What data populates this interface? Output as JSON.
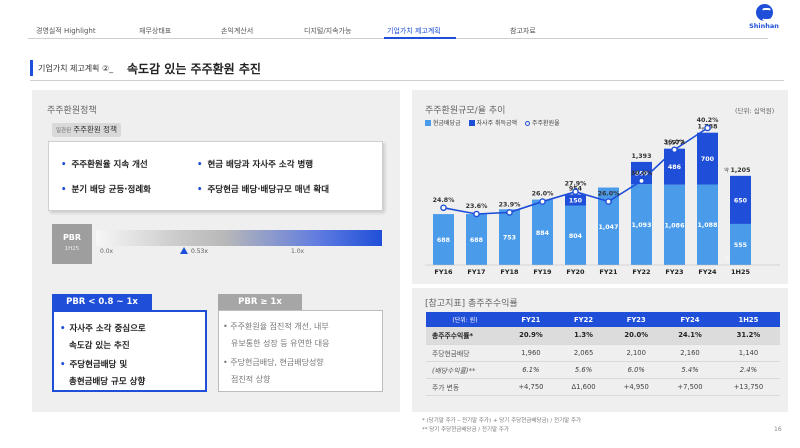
{
  "nav": {
    "items": [
      "경영실적 Highlight",
      "재무상태표",
      "손익계산서",
      "디지털/지속가능",
      "기업가치 제고계획",
      "참고자료"
    ],
    "active_index": 4
  },
  "logo": {
    "text": "Shinhan"
  },
  "page": {
    "subtitle": "기업가치 제고계획 ②_",
    "title": "속도감 있는 주주환원 추진",
    "number": "16"
  },
  "left_panel": {
    "title": "주주환원정책",
    "chip_small": "일관된",
    "chip_label": "주주환원 정책",
    "policies": [
      "주주환원율 지속 개선",
      "현금 배당과 자사주 소각 병행",
      "분기 배당 균등·정례화",
      "주당현금 배당·배당규모 매년 확대"
    ],
    "pbr": {
      "label": "PBR",
      "sub": "1H25",
      "ticks": [
        "0.0x",
        "1.0x"
      ],
      "current": "0.53x"
    },
    "scenario_a": {
      "header": "PBR < 0.8 ~ 1x",
      "lines": [
        "자사주 소각 중심으로",
        "속도감 있는 추진",
        "주당현금배당 및",
        "총현금배당 규모 상향"
      ]
    },
    "scenario_b": {
      "header": "PBR ≥ 1x",
      "lines": [
        "주주환원율 점진적 개선, 내부",
        "유보통한 성장 등 유연한 대응",
        "주당현금배당, 현금배당성향",
        "점진적 상향"
      ]
    }
  },
  "right_panel": {
    "title": "주주환원규모/율 추이",
    "unit": "(단위: 십억원)",
    "colors": {
      "cash": "#4a9bea",
      "buyback": "#1f4fd8",
      "rate": "#1f4fd8"
    }
  },
  "chart_data": {
    "type": "bar",
    "categories": [
      "FY16",
      "FY17",
      "FY18",
      "FY19",
      "FY20",
      "FY21",
      "FY22",
      "FY23",
      "FY24",
      "1H25"
    ],
    "series": [
      {
        "name": "현금배당금",
        "values": [
          688,
          688,
          753,
          884,
          804,
          1047,
          1093,
          1086,
          1088,
          555
        ]
      },
      {
        "name": "자사주 취득금액",
        "values": [
          0,
          0,
          0,
          0,
          150,
          0,
          300,
          486,
          700,
          650
        ]
      }
    ],
    "totals": [
      null,
      null,
      null,
      null,
      954,
      null,
      1393,
      1572,
      1788,
      1205
    ],
    "total_labels": [
      "",
      "",
      "",
      "",
      "954",
      "",
      "1,393",
      "1,572",
      "1,788",
      "1,205"
    ],
    "total_prefix_1h25": "약",
    "line": {
      "name": "주주환원율",
      "values": [
        24.8,
        23.6,
        23.9,
        26.0,
        27.9,
        26.0,
        30.0,
        36.0,
        40.2,
        null
      ]
    },
    "bar_labels": [
      "688",
      "688",
      "753",
      "884",
      "804",
      "1,047",
      "1,093",
      "1,086",
      "1,088",
      "555"
    ],
    "buyback_labels": [
      "",
      "",
      "",
      "",
      "150",
      "",
      "300",
      "486",
      "700",
      "650"
    ],
    "rate_labels": [
      "24.8%",
      "23.6%",
      "23.9%",
      "26.0%",
      "27.9%",
      "26.0%",
      "30.0%",
      "36.0%",
      "40.2%",
      ""
    ],
    "legend_position": "top-left",
    "grid": false
  },
  "table_panel": {
    "title": "[참고지표] 총주주수익률",
    "headers": [
      "(단위: 원)",
      "FY21",
      "FY22",
      "FY23",
      "FY24",
      "1H25"
    ],
    "rows": [
      [
        "총주주수익률*",
        "20.9%",
        "1.3%",
        "20.0%",
        "24.1%",
        "31.2%"
      ],
      [
        "주당현금배당",
        "1,960",
        "2,065",
        "2,100",
        "2,160",
        "1,140"
      ],
      [
        "(배당수익률)**",
        "6.1%",
        "5.6%",
        "6.0%",
        "5.4%",
        "2.4%"
      ],
      [
        "주가 변동",
        "+4,750",
        "Δ1,600",
        "+4,950",
        "+7,500",
        "+13,750"
      ]
    ],
    "footnotes": [
      "*  (당기말 주가 – 전기말 주가) + 당기 주당현금배당금) / 전기말 주가",
      "** 당기 주당현금배당금 / 전기말 주가"
    ]
  }
}
